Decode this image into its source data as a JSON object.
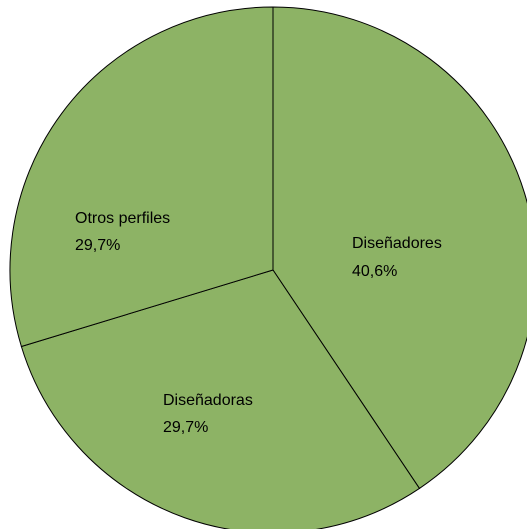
{
  "chart_data": {
    "type": "pie",
    "colors": {
      "slice_fill": "#8db365",
      "slice_border": "#000000",
      "label_text": "#000000"
    },
    "slices": [
      {
        "label": "Diseñadores",
        "value_label": "40,6%",
        "value": 40.6
      },
      {
        "label": "Diseñadoras",
        "value_label": "29,7%",
        "value": 29.7
      },
      {
        "label": "Otros perfiles",
        "value_label": "29,7%",
        "value": 29.7
      }
    ]
  }
}
